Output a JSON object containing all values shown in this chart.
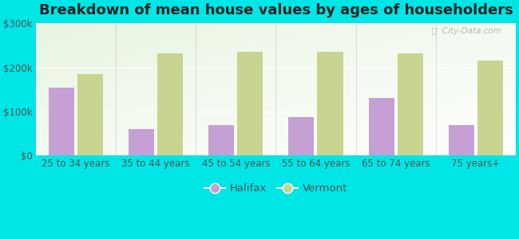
{
  "title": "Breakdown of mean house values by ages of householders",
  "categories": [
    "25 to 34 years",
    "35 to 44 years",
    "45 to 54 years",
    "55 to 64 years",
    "65 to 74 years",
    "75 years+"
  ],
  "halifax_values": [
    155000,
    60000,
    70000,
    87000,
    130000,
    70000
  ],
  "vermont_values": [
    185000,
    232000,
    235000,
    235000,
    232000,
    215000
  ],
  "halifax_color": "#c4a0d4",
  "vermont_color": "#c8d490",
  "background_color": "#00e5e5",
  "ylim": [
    0,
    300000
  ],
  "yticks": [
    0,
    100000,
    200000,
    300000
  ],
  "ytick_labels": [
    "$0",
    "$100k",
    "$200k",
    "$300k"
  ],
  "legend_labels": [
    "Halifax",
    "Vermont"
  ],
  "title_fontsize": 13,
  "tick_fontsize": 8.5,
  "legend_fontsize": 9.5,
  "bar_width": 0.32
}
